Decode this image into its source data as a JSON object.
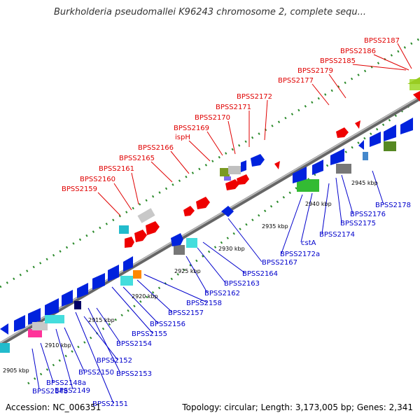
{
  "title": "Burkholderia pseudomallei K96243 chromosome 2, complete sequ...",
  "footer": {
    "accession": "Accession: NC_006351",
    "topology": "Topology: circular; Length: 3,173,005 bp; Genes: 2,341"
  },
  "scale_ticks": [
    "2905 kbp",
    "2910 kbp",
    "2915 kbp",
    "2920 kbp",
    "2925 kbp",
    "2930 kbp",
    "2935 kbp",
    "2940 kbp",
    "2945 kbp"
  ],
  "upper_labels": [
    "BPSS2159",
    "BPSS2160",
    "BPSS2161",
    "BPSS2165",
    "BPSS2166",
    "ispH",
    "BPSS2169",
    "BPSS2170",
    "BPSS2171",
    "BPSS2172",
    "BPSS2177",
    "BPSS2179",
    "BPSS2185",
    "BPSS2186",
    "BPSS2187"
  ],
  "lower_labels": [
    "BPSS2148",
    "BPSS2148a",
    "BPSS2149",
    "BPSS2150",
    "BPSS2151",
    "BPSS2152",
    "BPSS2153",
    "BPSS2154",
    "BPSS2155",
    "BPSS2156",
    "BPSS2157",
    "BPSS2158",
    "BPSS2162",
    "BPSS2163",
    "BPSS2164",
    "BPSS2167",
    "BPSS2172a",
    "cstA",
    "BPSS2174",
    "BPSS2175",
    "BPSS2176",
    "BPSS2178"
  ],
  "colors": {
    "upper_label": "#e00000",
    "lower_label": "#0000cc",
    "strand_red": "#ee0000",
    "strand_blue": "#0022dd",
    "backbone": "#888888",
    "dots": "#2a8a2a"
  }
}
